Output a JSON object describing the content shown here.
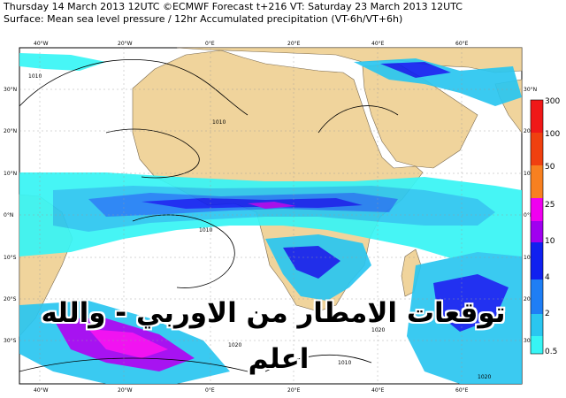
{
  "header": {
    "line1": "Thursday 14 March 2013 12UTC ©ECMWF Forecast t+216 VT: Saturday 23 March 2013 12UTC",
    "line2": "Surface: Mean sea level pressure / 12hr Accumulated precipitation (VT-6h/VT+6h)"
  },
  "map": {
    "lon_labels": [
      "40°W",
      "20°W",
      "0°E",
      "20°E",
      "40°E",
      "60°E"
    ],
    "lat_labels_left": [
      "30°N",
      "20°N",
      "10°N",
      "0°N",
      "10°S",
      "20°S",
      "30°S"
    ],
    "lat_labels_right": [
      "30°N",
      "20°N",
      "10°N",
      "0°N",
      "10°S",
      "20°S",
      "30°S"
    ],
    "isobar_labels": [
      "1010",
      "1010",
      "1010",
      "1020",
      "1020",
      "1010",
      "1020"
    ],
    "land_color": "#f0d49c",
    "sea_color": "#ffffff",
    "precip_colors": [
      "#37f5f5",
      "#2ac6f0",
      "#1f7ef5",
      "#1020f0",
      "#a000f0",
      "#f000f0",
      "#f88020",
      "#f04010",
      "#f01818"
    ]
  },
  "colorbar": {
    "labels": [
      "300",
      "100",
      "50",
      "25",
      "10",
      "4",
      "2",
      "0.5"
    ],
    "colors": [
      "#f01818",
      "#f04010",
      "#f88020",
      "#f000f0",
      "#a000f0",
      "#1020f0",
      "#1f7ef5",
      "#2ac6f0",
      "#37f5f5"
    ]
  },
  "overlay": {
    "line1": "توقعات الامطار من الاوربي - والله",
    "line2": "اعلم"
  }
}
